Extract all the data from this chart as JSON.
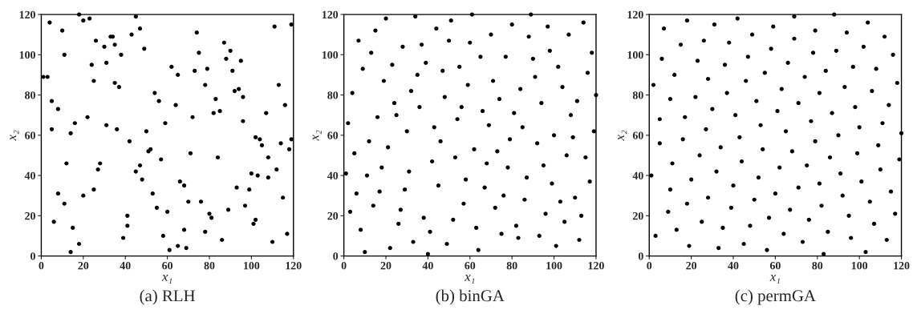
{
  "chart_data": [
    {
      "type": "scatter",
      "title": "(a) RLH",
      "xlabel": "x₁",
      "ylabel": "x₂",
      "xlim": [
        0,
        120
      ],
      "ylim": [
        0,
        120
      ],
      "xticks": [
        0,
        20,
        40,
        60,
        80,
        100,
        120
      ],
      "yticks": [
        0,
        20,
        40,
        60,
        80,
        100,
        120
      ],
      "grid": false,
      "marker": "circle",
      "series": [
        {
          "color": "#000000",
          "x": [
            1,
            3,
            4,
            5,
            5,
            6,
            8,
            8,
            10,
            11,
            11,
            12,
            14,
            14,
            15,
            16,
            18,
            18,
            20,
            20,
            22,
            23,
            24,
            25,
            25,
            26,
            27,
            28,
            30,
            31,
            31,
            33,
            34,
            35,
            35,
            36,
            37,
            38,
            39,
            41,
            41,
            42,
            43,
            45,
            45,
            47,
            47,
            48,
            49,
            50,
            51,
            52,
            53,
            54,
            55,
            56,
            57,
            58,
            59,
            60,
            61,
            62,
            64,
            65,
            65,
            66,
            68,
            68,
            69,
            70,
            71,
            72,
            73,
            74,
            75,
            76,
            78,
            78,
            79,
            80,
            81,
            82,
            83,
            84,
            85,
            86,
            87,
            88,
            89,
            90,
            91,
            92,
            93,
            94,
            95,
            96,
            96,
            97,
            99,
            100,
            101,
            102,
            102,
            103,
            104,
            105,
            107,
            108,
            108,
            110,
            111,
            112,
            113,
            114,
            115,
            116,
            117,
            118,
            119,
            119
          ],
          "values": [
            89,
            89,
            116,
            77,
            63,
            17,
            31,
            73,
            112,
            26,
            100,
            46,
            2,
            61,
            14,
            66,
            120,
            6,
            117,
            30,
            69,
            118,
            95,
            33,
            87,
            107,
            43,
            46,
            104,
            96,
            65,
            109,
            109,
            86,
            105,
            63,
            84,
            100,
            9,
            20,
            15,
            57,
            110,
            119,
            42,
            45,
            113,
            38,
            103,
            62,
            52,
            53,
            31,
            81,
            24,
            77,
            48,
            10,
            66,
            22,
            3,
            94,
            75,
            90,
            5,
            37,
            35,
            13,
            4,
            27,
            51,
            69,
            92,
            111,
            101,
            27,
            12,
            85,
            93,
            21,
            19,
            71,
            78,
            49,
            72,
            8,
            106,
            98,
            23,
            102,
            92,
            82,
            34,
            83,
            97,
            79,
            67,
            25,
            33,
            41,
            16,
            59,
            18,
            40,
            58,
            55,
            71,
            39,
            49,
            7,
            114,
            43,
            85,
            56,
            29,
            75,
            11,
            53,
            115,
            58
          ]
        }
      ]
    },
    {
      "type": "scatter",
      "title": "(b) binGA",
      "xlabel": "x₁",
      "ylabel": "x₂",
      "xlim": [
        0,
        120
      ],
      "ylim": [
        0,
        120
      ],
      "xticks": [
        0,
        20,
        40,
        60,
        80,
        100,
        120
      ],
      "yticks": [
        0,
        20,
        40,
        60,
        80,
        100,
        120
      ],
      "grid": false,
      "marker": "circle",
      "series": [
        {
          "color": "#000000",
          "x": [
            1,
            2,
            3,
            4,
            5,
            6,
            7,
            8,
            9,
            10,
            11,
            12,
            13,
            14,
            15,
            16,
            17,
            18,
            19,
            20,
            21,
            22,
            23,
            24,
            25,
            26,
            27,
            28,
            29,
            30,
            31,
            32,
            33,
            34,
            35,
            36,
            37,
            38,
            39,
            40,
            41,
            42,
            43,
            44,
            45,
            46,
            47,
            48,
            49,
            50,
            51,
            52,
            53,
            54,
            55,
            56,
            57,
            58,
            59,
            60,
            61,
            62,
            63,
            64,
            65,
            66,
            67,
            68,
            69,
            70,
            71,
            72,
            73,
            74,
            75,
            76,
            77,
            78,
            79,
            80,
            81,
            82,
            83,
            84,
            85,
            86,
            87,
            88,
            89,
            90,
            91,
            92,
            93,
            94,
            95,
            96,
            97,
            98,
            99,
            100,
            101,
            102,
            103,
            104,
            105,
            106,
            107,
            108,
            109,
            110,
            111,
            112,
            113,
            114,
            115,
            116,
            117,
            118,
            119,
            120
          ],
          "values": [
            41,
            66,
            22,
            81,
            51,
            31,
            107,
            13,
            93,
            2,
            40,
            57,
            101,
            25,
            112,
            69,
            32,
            44,
            87,
            118,
            54,
            4,
            95,
            76,
            70,
            16,
            23,
            104,
            33,
            62,
            42,
            82,
            7,
            119,
            90,
            74,
            105,
            19,
            96,
            1,
            12,
            47,
            64,
            113,
            35,
            57,
            92,
            79,
            6,
            107,
            117,
            18,
            49,
            68,
            94,
            74,
            26,
            38,
            85,
            106,
            120,
            53,
            14,
            3,
            99,
            72,
            34,
            46,
            65,
            110,
            87,
            24,
            52,
            78,
            11,
            30,
            99,
            44,
            58,
            115,
            71,
            15,
            9,
            83,
            64,
            28,
            39,
            109,
            120,
            98,
            89,
            56,
            10,
            76,
            45,
            21,
            114,
            102,
            36,
            60,
            5,
            94,
            27,
            84,
            17,
            50,
            110,
            70,
            59,
            29,
            77,
            8,
            20,
            116,
            49,
            91,
            37,
            101,
            62,
            80
          ]
        }
      ]
    },
    {
      "type": "scatter",
      "title": "(c) permGA",
      "xlabel": "x₁",
      "ylabel": "x₂",
      "xlim": [
        0,
        120
      ],
      "ylim": [
        0,
        120
      ],
      "xticks": [
        0,
        20,
        40,
        60,
        80,
        100,
        120
      ],
      "yticks": [
        0,
        20,
        40,
        60,
        80,
        100,
        120
      ],
      "grid": false,
      "marker": "circle",
      "series": [
        {
          "color": "#000000",
          "x": [
            1,
            2,
            3,
            5,
            5,
            6,
            7,
            9,
            10,
            10,
            11,
            12,
            13,
            15,
            16,
            17,
            18,
            18,
            19,
            20,
            22,
            23,
            24,
            25,
            26,
            27,
            28,
            28,
            30,
            31,
            32,
            33,
            34,
            35,
            36,
            37,
            38,
            39,
            40,
            41,
            42,
            43,
            44,
            45,
            46,
            47,
            48,
            49,
            50,
            51,
            52,
            53,
            54,
            55,
            56,
            57,
            58,
            59,
            60,
            61,
            62,
            63,
            64,
            65,
            66,
            67,
            68,
            69,
            69,
            71,
            71,
            73,
            74,
            75,
            76,
            77,
            78,
            79,
            79,
            81,
            81,
            82,
            83,
            84,
            85,
            86,
            87,
            88,
            89,
            90,
            91,
            92,
            93,
            94,
            95,
            96,
            97,
            98,
            99,
            100,
            101,
            102,
            103,
            104,
            105,
            106,
            107,
            108,
            109,
            110,
            111,
            112,
            113,
            114,
            115,
            116,
            117,
            118,
            119,
            120
          ],
          "values": [
            40,
            85,
            10,
            56,
            68,
            98,
            113,
            22,
            33,
            78,
            46,
            90,
            13,
            105,
            58,
            69,
            117,
            26,
            5,
            38,
            79,
            97,
            50,
            17,
            107,
            63,
            88,
            29,
            73,
            115,
            42,
            4,
            54,
            14,
            95,
            81,
            106,
            24,
            35,
            70,
            118,
            59,
            47,
            6,
            87,
            99,
            15,
            110,
            28,
            77,
            39,
            65,
            53,
            91,
            3,
            19,
            103,
            114,
            31,
            72,
            44,
            83,
            11,
            62,
            96,
            23,
            52,
            108,
            119,
            34,
            76,
            7,
            89,
            45,
            18,
            67,
            101,
            57,
            112,
            36,
            81,
            25,
            1,
            92,
            12,
            49,
            71,
            120,
            102,
            60,
            41,
            30,
            84,
            111,
            20,
            9,
            94,
            74,
            51,
            64,
            37,
            104,
            2,
            116,
            27,
            82,
            16,
            93,
            55,
            43,
            66,
            109,
            8,
            75,
            32,
            100,
            21,
            86,
            48,
            61
          ]
        }
      ]
    }
  ]
}
